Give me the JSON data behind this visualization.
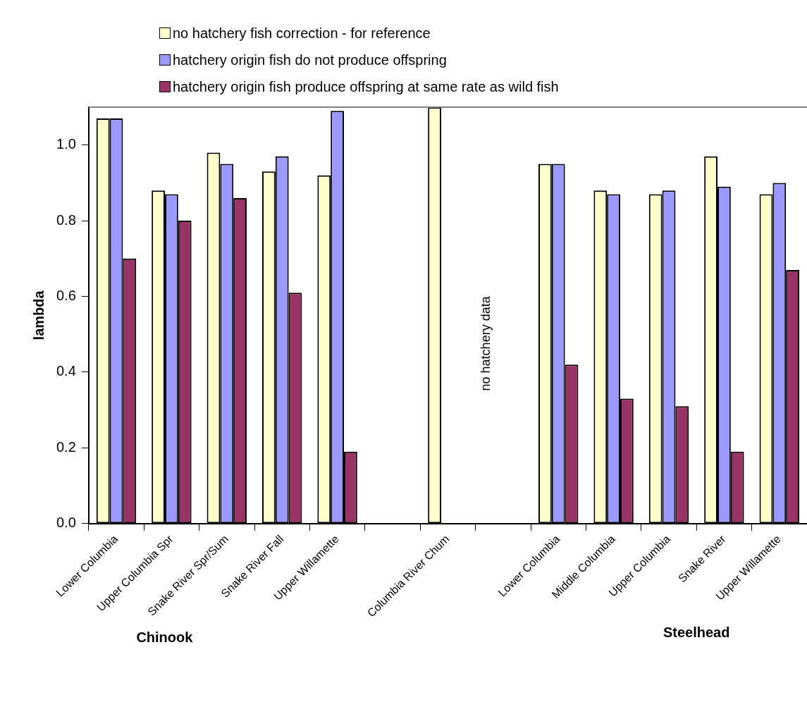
{
  "chart_data": {
    "type": "bar",
    "ylabel": "lambda",
    "categories": [
      "Lower Columbia",
      "Upper Columbia Spr",
      "Snake River Spr/Sum",
      "Snake River Fall",
      "Upper Willamette",
      null,
      "Columbia River Chum",
      null,
      "Lower Columbia",
      "Middle Columbia",
      "Upper Columbia",
      "Snake River",
      "Upper Willamette"
    ],
    "series": [
      {
        "name": "no hatchery fish correction - for reference",
        "color": "#ffffcc",
        "values": [
          1.07,
          0.88,
          0.98,
          0.93,
          0.92,
          null,
          1.1,
          null,
          0.95,
          0.88,
          0.87,
          0.97,
          0.87
        ]
      },
      {
        "name": "hatchery origin fish do not produce offspring",
        "color": "#9999ff",
        "values": [
          1.07,
          0.87,
          0.95,
          0.97,
          1.09,
          null,
          null,
          null,
          0.95,
          0.87,
          0.88,
          0.89,
          0.9
        ]
      },
      {
        "name": "hatchery origin fish produce offspring at same rate as wild fish",
        "color": "#993366",
        "values": [
          0.7,
          0.8,
          0.86,
          0.61,
          0.19,
          null,
          null,
          null,
          0.42,
          0.33,
          0.31,
          0.19,
          0.67
        ]
      }
    ],
    "ylim": [
      0,
      1.1
    ],
    "yticks": [
      {
        "value": 0,
        "label": "0.0"
      },
      {
        "value": 0.2,
        "label": "0.2"
      },
      {
        "value": 0.4,
        "label": "0.4"
      },
      {
        "value": 0.6,
        "label": "0.6"
      },
      {
        "value": 0.8,
        "label": "0.8"
      },
      {
        "value": 1,
        "label": "1.0"
      }
    ],
    "grid": false,
    "legend": "top",
    "annotations": [
      "no hatchery data",
      "Chinook",
      "Steelhead"
    ]
  }
}
